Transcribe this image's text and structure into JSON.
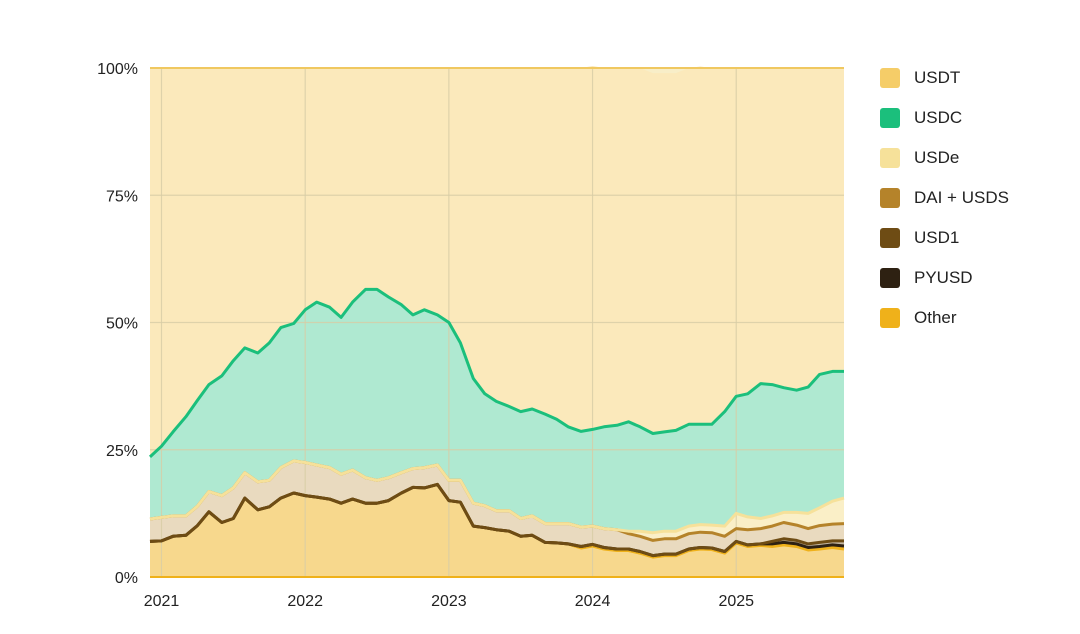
{
  "chart_data": {
    "type": "area",
    "stacked": true,
    "percent": true,
    "title": "",
    "xlabel": "",
    "ylabel": "",
    "ylim": [
      0,
      100
    ],
    "y_ticks": [
      "0%",
      "25%",
      "50%",
      "75%",
      "100%"
    ],
    "y_tick_values": [
      0,
      25,
      50,
      75,
      100
    ],
    "x_ticks": [
      "2021",
      "2022",
      "2023",
      "2024",
      "2025"
    ],
    "x_tick_values": [
      2021.0,
      2022.0,
      2023.0,
      2024.0,
      2025.0
    ],
    "x_range": [
      2020.92,
      2025.75
    ],
    "grid": true,
    "legend_position": "right",
    "x": [
      2020.92,
      2021.0,
      2021.08,
      2021.17,
      2021.25,
      2021.33,
      2021.42,
      2021.5,
      2021.58,
      2021.67,
      2021.75,
      2021.83,
      2021.92,
      2022.0,
      2022.08,
      2022.17,
      2022.25,
      2022.33,
      2022.42,
      2022.5,
      2022.58,
      2022.67,
      2022.75,
      2022.83,
      2022.92,
      2023.0,
      2023.08,
      2023.17,
      2023.25,
      2023.33,
      2023.42,
      2023.5,
      2023.58,
      2023.67,
      2023.75,
      2023.83,
      2023.92,
      2024.0,
      2024.08,
      2024.17,
      2024.25,
      2024.33,
      2024.42,
      2024.5,
      2024.58,
      2024.67,
      2024.75,
      2024.83,
      2024.92,
      2025.0,
      2025.08,
      2025.17,
      2025.25,
      2025.33,
      2025.42,
      2025.5,
      2025.58,
      2025.67,
      2025.75
    ],
    "series": [
      {
        "name": "USDT",
        "color": "#f5cd68",
        "values": [
          76.4,
          74.3,
          71.5,
          68.5,
          65.3,
          62.2,
          60.5,
          57.5,
          55.0,
          56.0,
          54.0,
          51.0,
          50.2,
          47.5,
          46.0,
          47.0,
          49.0,
          46.0,
          43.5,
          43.5,
          45.0,
          46.5,
          48.5,
          47.5,
          48.5,
          50.0,
          54.0,
          61.0,
          64.0,
          65.5,
          66.5,
          67.5,
          67.0,
          68.0,
          69.0,
          70.5,
          71.4,
          71.4,
          70.5,
          70.2,
          69.5,
          70.5,
          70.8,
          70.5,
          70.2,
          70.0,
          70.3,
          70.0,
          67.5,
          64.5,
          64.0,
          62.0,
          62.2,
          62.8,
          63.3,
          62.7,
          60.2,
          59.6,
          59.6
        ]
      },
      {
        "name": "USDC",
        "color": "#1bbf7c",
        "values": [
          12.2,
          14.0,
          16.5,
          19.5,
          20.8,
          21.0,
          23.5,
          25.0,
          24.5,
          25.3,
          27.0,
          27.5,
          27.0,
          30.0,
          32.0,
          31.5,
          30.8,
          33.0,
          37.0,
          37.5,
          35.5,
          33.0,
          30.2,
          31.0,
          29.5,
          31.0,
          27.0,
          24.5,
          22.0,
          21.5,
          20.5,
          21.0,
          21.0,
          21.5,
          20.5,
          19.0,
          18.8,
          19.0,
          20.0,
          20.5,
          21.5,
          20.5,
          19.5,
          19.5,
          19.8,
          20.0,
          19.7,
          19.8,
          22.5,
          23.0,
          24.2,
          26.5,
          25.8,
          24.5,
          24.0,
          24.8,
          26.2,
          25.5,
          24.9
        ]
      },
      {
        "name": "USDe",
        "color": "#f6e19a",
        "values": [
          0,
          0,
          0,
          0,
          0,
          0,
          0,
          0,
          0,
          0,
          0,
          0,
          0,
          0,
          0,
          0,
          0,
          0,
          0,
          0,
          0,
          0,
          0,
          0,
          0,
          0,
          0,
          0,
          0,
          0,
          0,
          0,
          0,
          0,
          0,
          0,
          0,
          0,
          0,
          0,
          0.5,
          1.0,
          1.5,
          1.5,
          1.5,
          1.5,
          1.5,
          1.5,
          2.0,
          3.0,
          2.5,
          2.0,
          2.0,
          2.0,
          2.5,
          3.0,
          3.5,
          4.5,
          5.0
        ]
      },
      {
        "name": "DAI + USDS",
        "color": "#b5832a",
        "values": [
          4.4,
          4.6,
          4.0,
          3.8,
          3.8,
          4.0,
          5.3,
          6.0,
          5.0,
          5.5,
          5.2,
          6.0,
          6.3,
          6.5,
          6.3,
          6.2,
          5.7,
          5.7,
          5.0,
          4.5,
          4.5,
          4.0,
          3.7,
          4.0,
          3.8,
          4.0,
          4.3,
          4.5,
          4.3,
          3.7,
          4.0,
          3.5,
          3.8,
          3.7,
          3.8,
          4.0,
          3.8,
          3.6,
          3.7,
          3.8,
          3.0,
          3.0,
          3.0,
          3.0,
          3.0,
          3.0,
          3.0,
          3.0,
          3.0,
          2.5,
          3.0,
          3.0,
          3.0,
          3.2,
          3.0,
          3.0,
          3.3,
          3.3,
          3.4
        ]
      },
      {
        "name": "USD1",
        "color": "#6e4c14",
        "values": [
          0,
          0,
          0,
          0,
          0,
          0,
          0,
          0,
          0,
          0,
          0,
          0,
          0,
          0,
          0,
          0,
          0,
          0,
          0,
          0,
          0,
          0,
          0,
          0,
          0,
          0,
          0,
          0,
          0,
          0,
          0,
          0,
          0,
          0,
          0,
          0,
          0,
          0,
          0,
          0,
          0,
          0,
          0,
          0,
          0,
          0,
          0,
          0,
          0,
          0,
          0,
          0,
          0.5,
          0.7,
          0.7,
          0.7,
          0.8,
          0.8,
          1.0
        ]
      },
      {
        "name": "PYUSD",
        "color": "#2e2112",
        "values": [
          0,
          0,
          0,
          0,
          0,
          0,
          0,
          0,
          0,
          0,
          0,
          0,
          0,
          0,
          0,
          0,
          0,
          0,
          0,
          0,
          0,
          0,
          0,
          0,
          0,
          0,
          0,
          0,
          0,
          0,
          0,
          0,
          0,
          0,
          0,
          0,
          0.3,
          0.3,
          0.3,
          0.3,
          0.3,
          0.3,
          0.3,
          0.3,
          0.3,
          0.3,
          0.3,
          0.3,
          0.3,
          0.3,
          0.3,
          0.3,
          0.5,
          0.5,
          0.5,
          0.5,
          0.5,
          0.5,
          0.6
        ]
      },
      {
        "name": "Other",
        "color": "#efb11a",
        "values": [
          7.0,
          7.1,
          8.0,
          8.2,
          10.1,
          12.8,
          10.7,
          11.5,
          15.5,
          13.2,
          13.8,
          15.5,
          16.5,
          16.0,
          15.7,
          15.3,
          14.5,
          15.3,
          14.5,
          14.5,
          15.0,
          16.5,
          17.6,
          17.5,
          18.2,
          15.0,
          14.7,
          10.0,
          9.7,
          9.3,
          9.0,
          8.0,
          8.2,
          6.8,
          6.7,
          6.5,
          5.7,
          6.1,
          5.5,
          5.2,
          5.2,
          4.7,
          3.9,
          4.2,
          4.2,
          5.2,
          5.5,
          5.4,
          4.7,
          6.7,
          6.0,
          6.2,
          6.0,
          6.3,
          6.0,
          5.3,
          5.5,
          5.8,
          5.5
        ]
      }
    ]
  }
}
